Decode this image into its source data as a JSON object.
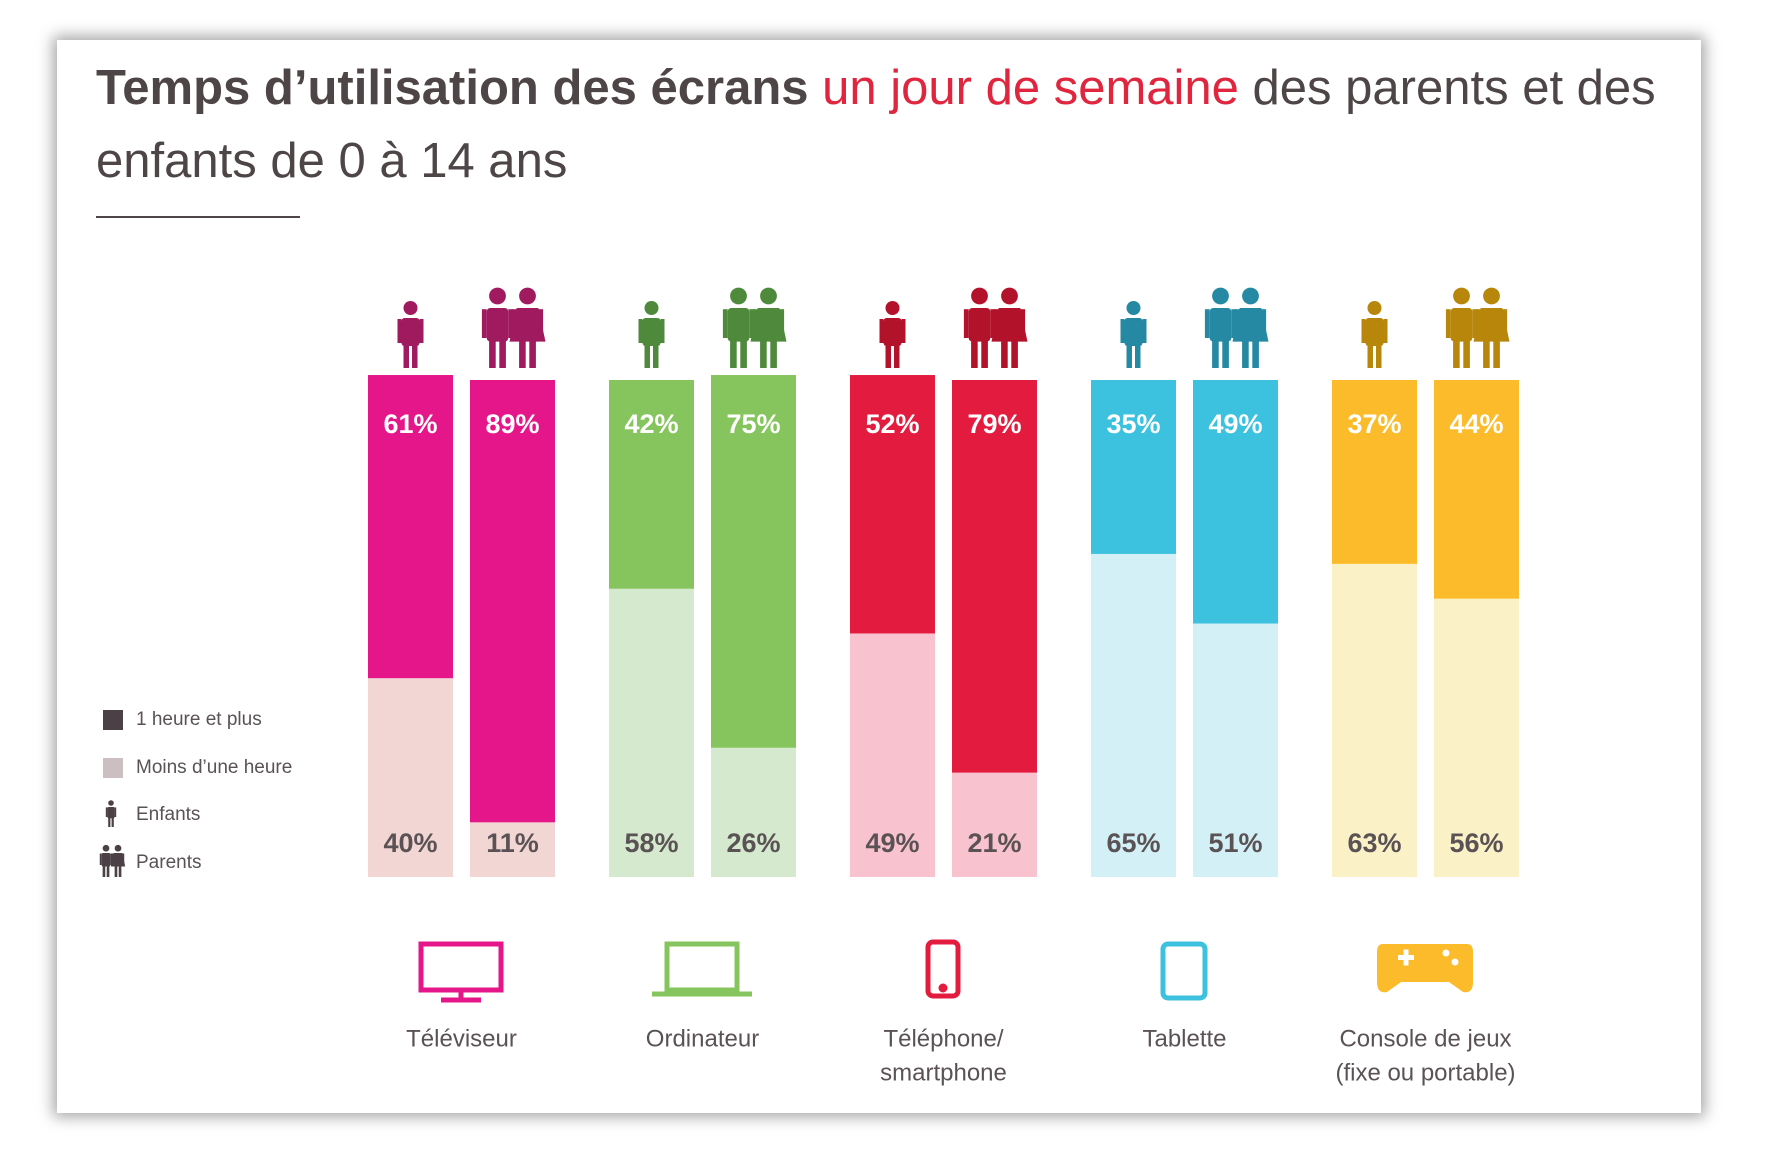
{
  "chart_data": {
    "type": "bar",
    "stacked": true,
    "title": {
      "bold": "Temps d’utilisation des écrans",
      "highlight": "un jour de semaine",
      "rest": "des parents et des enfants de 0 à 14 ans"
    },
    "categories": [
      [
        "Téléviseur"
      ],
      [
        "Ordinateur"
      ],
      [
        "Téléphone/",
        "smartphone"
      ],
      [
        "Tablette"
      ],
      [
        "Console de jeux",
        "(fixe ou portable)"
      ]
    ],
    "category_colors": [
      {
        "strong": "#e5168a",
        "light": "#f2d6d3",
        "icon": "#a01a5f"
      },
      {
        "strong": "#86c55e",
        "light": "#d4e9cd",
        "icon": "#4f8a3c"
      },
      {
        "strong": "#e31c3f",
        "light": "#f8c2cf",
        "icon": "#b2132b"
      },
      {
        "strong": "#3cc1df",
        "light": "#d3f0f7",
        "icon": "#2689a3"
      },
      {
        "strong": "#fbbb2a",
        "light": "#fbf1c7",
        "icon": "#b8860b"
      }
    ],
    "groups": [
      "Enfants",
      "Parents"
    ],
    "series": [
      {
        "name": "1 heure et plus",
        "color": "#4a4045",
        "values": [
          [
            61,
            89
          ],
          [
            42,
            75
          ],
          [
            52,
            79
          ],
          [
            35,
            49
          ],
          [
            37,
            44
          ]
        ],
        "value_labels": [
          [
            "61%",
            "89%"
          ],
          [
            "42%",
            "75%"
          ],
          [
            "52%",
            "79%"
          ],
          [
            "35%",
            "49%"
          ],
          [
            "37%",
            "44%"
          ]
        ]
      },
      {
        "name": "Moins d’une heure",
        "color": "#cbbfc2",
        "values": [
          [
            40,
            11
          ],
          [
            58,
            26
          ],
          [
            49,
            21
          ],
          [
            65,
            51
          ],
          [
            63,
            56
          ]
        ],
        "value_labels": [
          [
            "40%",
            "11%"
          ],
          [
            "58%",
            "26%"
          ],
          [
            "49%",
            "21%"
          ],
          [
            "65%",
            "51%"
          ],
          [
            "63%",
            "56%"
          ]
        ]
      }
    ],
    "ylim": [
      0,
      100
    ]
  }
}
